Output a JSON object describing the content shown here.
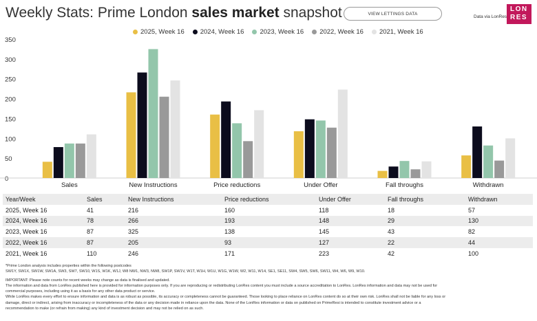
{
  "header": {
    "title_prefix": "Weekly Stats: Prime London ",
    "title_bold": "sales market",
    "title_suffix": " snapshot",
    "button_label": "VIEW LETTINGS DATA",
    "data_via": "Data via LonRes",
    "logo_line1": "LON",
    "logo_line2": "RES",
    "logo_color": "#c2185b"
  },
  "chart_data": {
    "type": "bar",
    "title": "",
    "xlabel": "",
    "ylabel": "",
    "ylim": [
      0,
      350
    ],
    "yticks": [
      0,
      50,
      100,
      150,
      200,
      250,
      300,
      350
    ],
    "categories": [
      "Sales",
      "New Instructions",
      "Price reductions",
      "Under Offer",
      "Fall throughs",
      "Withdrawn"
    ],
    "series": [
      {
        "name": "2025, Week 16",
        "color": "#e9bf45",
        "values": [
          41,
          216,
          160,
          118,
          18,
          57
        ]
      },
      {
        "name": "2024, Week 16",
        "color": "#0c0c1d",
        "values": [
          78,
          266,
          193,
          148,
          29,
          130
        ]
      },
      {
        "name": "2023, Week 16",
        "color": "#93c6ab",
        "values": [
          87,
          325,
          138,
          145,
          43,
          82
        ]
      },
      {
        "name": "2022, Week 16",
        "color": "#999999",
        "values": [
          87,
          205,
          93,
          127,
          22,
          44
        ]
      },
      {
        "name": "2021, Week 16",
        "color": "#e3e3e3",
        "values": [
          110,
          246,
          171,
          223,
          42,
          100
        ]
      }
    ],
    "legend_position": "top"
  },
  "table": {
    "headers": [
      "Year/Week",
      "Sales",
      "New Instructions",
      "Price reductions",
      "Under Offer",
      "Fall throughs",
      "Withdrawn"
    ],
    "rows": [
      [
        "2025, Week 16",
        "41",
        "216",
        "160",
        "118",
        "18",
        "57"
      ],
      [
        "2024, Week 16",
        "78",
        "266",
        "193",
        "148",
        "29",
        "130"
      ],
      [
        "2023, Week 16",
        "87",
        "325",
        "138",
        "145",
        "43",
        "82"
      ],
      [
        "2022, Week 16",
        "87",
        "205",
        "93",
        "127",
        "22",
        "44"
      ],
      [
        "2021, Week 16",
        "110",
        "246",
        "171",
        "223",
        "42",
        "100"
      ]
    ]
  },
  "notes": {
    "postcodes_intro": "*Prime London analysis includes properties within the following postcodes",
    "postcodes": "SW1Y, SW1X, SW1W, SW1A, SW3, SW7, SW10, W1S, W1K, W1J, W8 NW1, NW3, NW8, SW1P, SW1V, W1T, W1H, W1U, W1G, W1W, W2, W11, W14, SE1, SE11, SW4, SW5, SW6, SW11, W4, W6, W9, W10.",
    "important": "IMPORTANT: Please note counts for recent weeks may change as data is finalised and updated.",
    "info1": "The information and data from LonRes published here is provided for information purposes only. If you are reproducing or redistributing LonRes content you must include a source accreditation to LonRes. LonRes information and data may not be used for",
    "info2": "commercial purposes, including using it as a basis for any other data product or service.",
    "info3": "While LonRes makes every effort to ensure information and data is as robust as possible, its accuracy or completeness cannot be guaranteed. Those looking to place reliance on LonRes content do so at their own risk. LonRes shall not be liable for any loss or",
    "info4": "damage, direct or indirect, arising from inaccuracy or incompleteness of the data or any decision made in reliance upon the data. None of the LonRes information or data on published on PrimeResi is intended to constitute investment advice or a",
    "info5": "recommendation to make (or refrain from making) any kind of investment decision and may not be relied on as such."
  }
}
